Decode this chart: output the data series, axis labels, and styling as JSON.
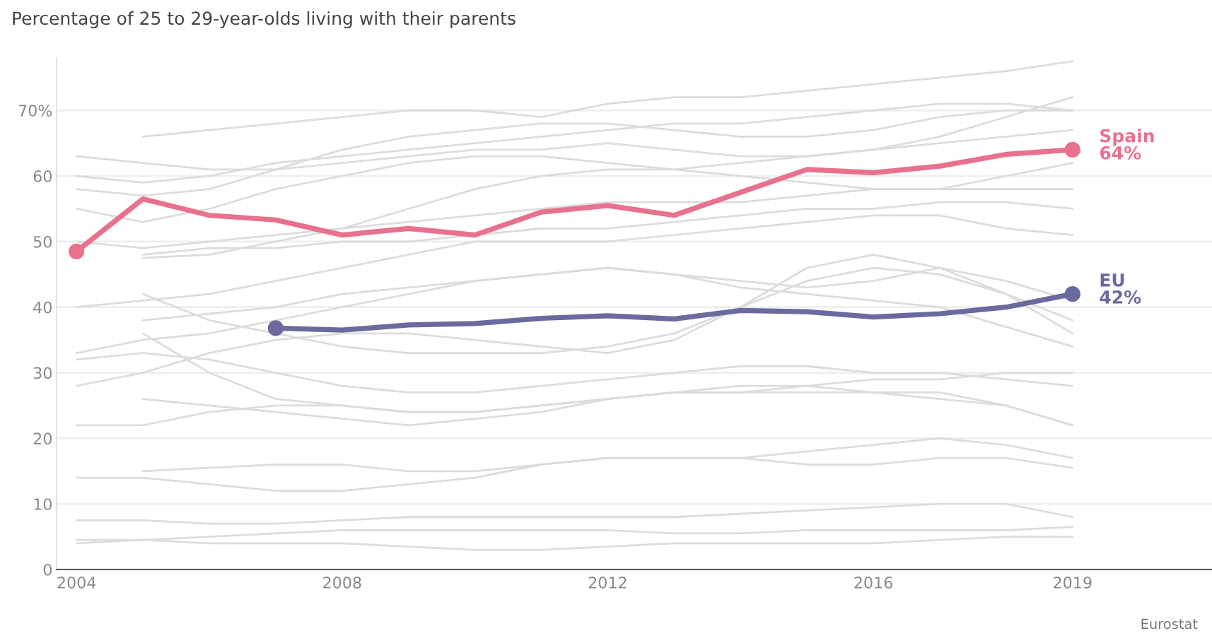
{
  "chart_data": {
    "type": "line",
    "title": "Percentage of 25 to 29-year-olds living with their parents",
    "x": [
      2004,
      2005,
      2006,
      2007,
      2008,
      2009,
      2010,
      2011,
      2012,
      2013,
      2014,
      2015,
      2016,
      2017,
      2018,
      2019
    ],
    "xlim": [
      2003.7,
      2021.1
    ],
    "xticks": [
      2004,
      2008,
      2012,
      2016,
      2019
    ],
    "ylim": [
      0,
      78
    ],
    "yticks": [
      0,
      10,
      20,
      30,
      40,
      50,
      60,
      {
        "value": 70,
        "label": "70%"
      }
    ],
    "grid": "y",
    "legend": false,
    "line_style": "solid",
    "annotations": [
      "Eurostat"
    ],
    "series": [
      {
        "color": "#dcdcdc",
        "values": [
          null,
          66,
          67,
          68,
          69,
          70,
          70,
          69,
          71,
          72,
          72,
          73,
          74,
          75,
          76,
          77.5
        ]
      },
      {
        "color": "#dcdcdc",
        "values": [
          63,
          62,
          61,
          61,
          62,
          63,
          64,
          64,
          65,
          64,
          63,
          63,
          64,
          66,
          69,
          72
        ]
      },
      {
        "color": "#dcdcdc",
        "values": [
          60,
          59,
          60,
          62,
          63,
          64,
          65,
          66,
          67,
          68,
          68,
          69,
          70,
          71,
          71,
          70
        ]
      },
      {
        "color": "#dcdcdc",
        "values": [
          58,
          57,
          58,
          61,
          64,
          66,
          67,
          68,
          68,
          67,
          66,
          66,
          67,
          69,
          70,
          70
        ]
      },
      {
        "color": "#dcdcdc",
        "values": [
          55,
          53,
          55,
          58,
          60,
          62,
          63,
          63,
          62,
          61,
          62,
          63,
          64,
          65,
          66,
          67
        ]
      },
      {
        "color": "#dcdcdc",
        "values": [
          null,
          47.5,
          48,
          50,
          52,
          55,
          58,
          60,
          61,
          61,
          60,
          59,
          58,
          58,
          60,
          62
        ]
      },
      {
        "color": "#dcdcdc",
        "values": [
          50,
          49,
          50,
          51,
          52,
          53,
          54,
          55,
          56,
          56,
          56,
          57,
          58,
          58,
          58,
          58
        ]
      },
      {
        "color": "#dcdcdc",
        "values": [
          null,
          48,
          49,
          49,
          50,
          50,
          51,
          52,
          52,
          53,
          54,
          55,
          55,
          56,
          56,
          55
        ]
      },
      {
        "color": "#dcdcdc",
        "values": [
          40,
          41,
          42,
          44,
          46,
          48,
          50,
          50,
          50,
          51,
          52,
          53,
          54,
          54,
          52,
          51
        ]
      },
      {
        "color": "#dcdcdc",
        "values": [
          null,
          42,
          38,
          36,
          34,
          33,
          33,
          33,
          34,
          36,
          40,
          44,
          46,
          45,
          42,
          38
        ]
      },
      {
        "color": "#dcdcdc",
        "values": [
          null,
          38,
          39,
          40,
          42,
          43,
          44,
          45,
          46,
          45,
          44,
          43,
          44,
          46,
          44,
          41
        ]
      },
      {
        "color": "#dcdcdc",
        "values": [
          33,
          35,
          36,
          38,
          40,
          42,
          44,
          45,
          46,
          45,
          43,
          42,
          41,
          40,
          37,
          34
        ]
      },
      {
        "color": "#dcdcdc",
        "values": [
          28,
          30,
          33,
          35,
          36,
          36,
          35,
          34,
          33,
          35,
          40,
          46,
          48,
          46,
          42,
          36
        ]
      },
      {
        "color": "#dcdcdc",
        "values": [
          null,
          36,
          30,
          26,
          25,
          24,
          24,
          25,
          26,
          27,
          27,
          28,
          29,
          29,
          30,
          30
        ]
      },
      {
        "color": "#dcdcdc",
        "values": [
          32,
          33,
          32,
          30,
          28,
          27,
          27,
          28,
          29,
          30,
          31,
          31,
          30,
          30,
          29,
          28
        ]
      },
      {
        "color": "#dcdcdc",
        "values": [
          22,
          22,
          24,
          25,
          25,
          24,
          24,
          25,
          26,
          27,
          27,
          27,
          27,
          26,
          25,
          22
        ]
      },
      {
        "color": "#dcdcdc",
        "values": [
          null,
          26,
          25,
          24,
          23,
          22,
          23,
          24,
          26,
          27,
          28,
          28,
          27,
          27,
          25,
          22
        ]
      },
      {
        "color": "#dcdcdc",
        "values": [
          14,
          14,
          13,
          12,
          12,
          13,
          14,
          16,
          17,
          17,
          17,
          18,
          19,
          20,
          19,
          17
        ]
      },
      {
        "color": "#dcdcdc",
        "values": [
          null,
          15,
          15.5,
          16,
          16,
          15,
          15,
          16,
          17,
          17,
          17,
          16,
          16,
          17,
          17,
          15.5
        ]
      },
      {
        "color": "#dcdcdc",
        "values": [
          7.5,
          7.5,
          7,
          7,
          7.5,
          8,
          8,
          8,
          8,
          8,
          8.5,
          9,
          9.5,
          10,
          10,
          8
        ]
      },
      {
        "color": "#dcdcdc",
        "values": [
          4,
          4.5,
          5,
          5.5,
          6,
          6,
          6,
          6,
          6,
          5.5,
          5.5,
          6,
          6,
          6,
          6,
          6.5
        ]
      },
      {
        "color": "#dcdcdc",
        "values": [
          4.5,
          4.5,
          4,
          4,
          4,
          3.5,
          3,
          3,
          3.5,
          4,
          4,
          4,
          4,
          4.5,
          5,
          5
        ]
      },
      {
        "name": "EU",
        "color": "#6b6a9e",
        "values": [
          null,
          null,
          null,
          36.8,
          36.5,
          37.3,
          37.5,
          38.3,
          38.7,
          38.2,
          39.5,
          39.3,
          38.5,
          39,
          40,
          42
        ],
        "value_labels": [
          null,
          null,
          null,
          null,
          null,
          null,
          null,
          null,
          null,
          null,
          null,
          null,
          null,
          null,
          null,
          "42%"
        ]
      },
      {
        "name": "Spain",
        "color": "#e8718d",
        "values": [
          48.5,
          56.5,
          54,
          53.3,
          51,
          52,
          51,
          54.5,
          55.5,
          54,
          57.5,
          61,
          60.5,
          61.5,
          63.3,
          64
        ],
        "value_labels": [
          null,
          null,
          null,
          null,
          null,
          null,
          null,
          null,
          null,
          null,
          null,
          null,
          null,
          null,
          null,
          "64%"
        ]
      }
    ]
  }
}
